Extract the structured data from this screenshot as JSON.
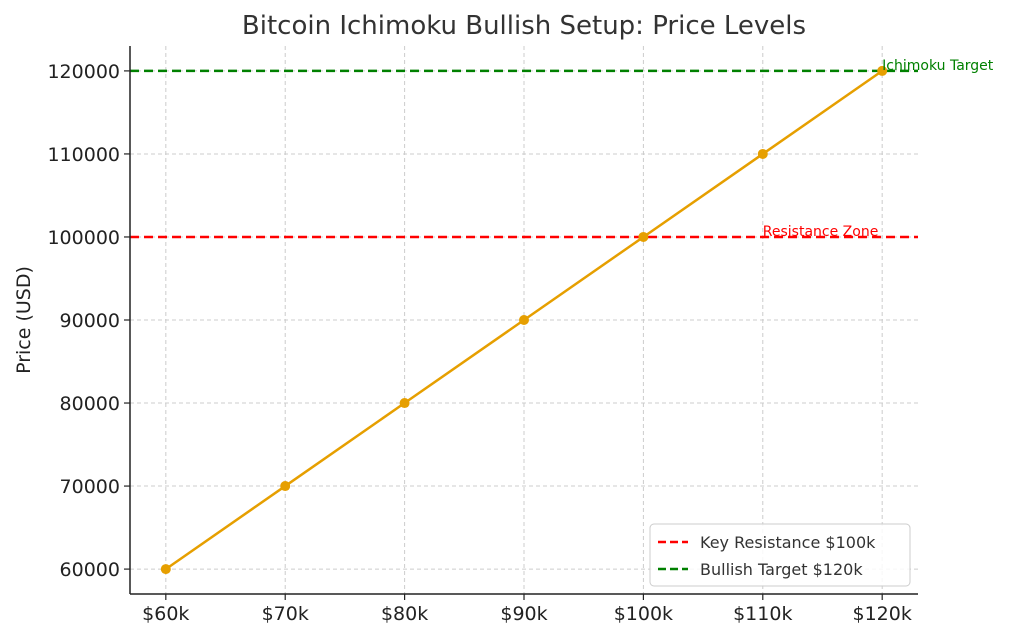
{
  "chart_data": {
    "type": "line",
    "title": "Bitcoin Ichimoku Bullish Setup: Price Levels",
    "xlabel": "",
    "ylabel": "Price (USD)",
    "categories": [
      "$60k",
      "$70k",
      "$80k",
      "$90k",
      "$100k",
      "$110k",
      "$120k"
    ],
    "series": [
      {
        "values": [
          60000,
          70000,
          80000,
          90000,
          100000,
          110000,
          120000
        ],
        "color": "#e69f00"
      }
    ],
    "y_ticks": [
      60000,
      70000,
      80000,
      90000,
      100000,
      110000,
      120000
    ],
    "ylim": [
      57000,
      123000
    ],
    "grid": true,
    "reference_lines": [
      {
        "name": "Key Resistance $100k",
        "value": 100000,
        "color": "#ff0000",
        "style": "dashed"
      },
      {
        "name": "Bullish Target $120k",
        "value": 120000,
        "color": "#008000",
        "style": "dashed"
      }
    ],
    "annotations": [
      {
        "text": "Resistance Zone",
        "x_category": "$110k",
        "y": 100000,
        "color": "#ff0000"
      },
      {
        "text": "Ichimoku Target",
        "x_category": "$120k",
        "y": 120000,
        "color": "#008000"
      }
    ],
    "legend": {
      "placement": "bottom-right",
      "entries": [
        "Key Resistance $100k",
        "Bullish Target $120k"
      ]
    }
  }
}
